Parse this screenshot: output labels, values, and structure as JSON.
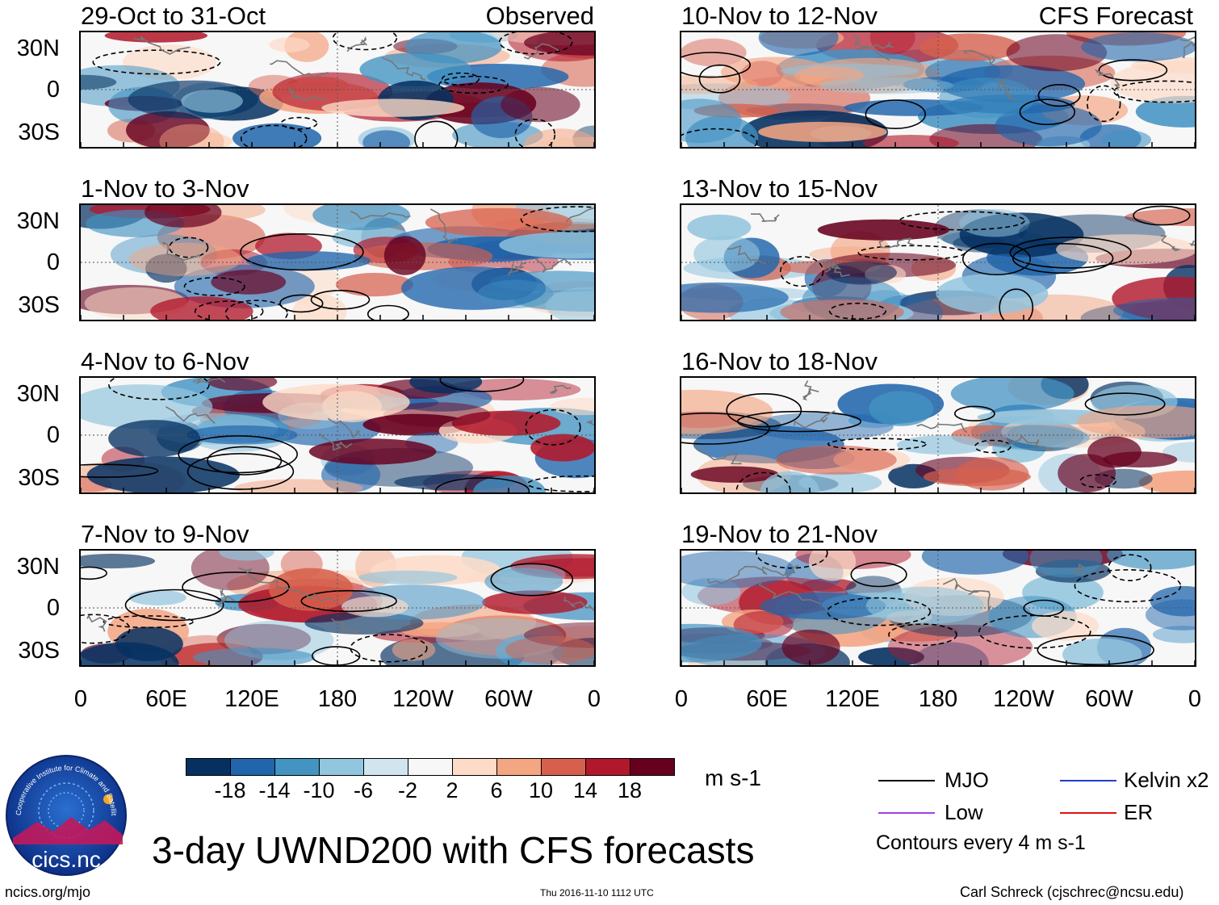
{
  "chart_data": {
    "type": "heatmap",
    "title": "3-day UWND200 with CFS forecasts",
    "variable": "UWND200",
    "units": "m s-1",
    "column_headers": {
      "left": "Observed",
      "right": "CFS Forecast"
    },
    "lat_ticks": [
      "30N",
      "0",
      "30S"
    ],
    "lon_ticks": [
      "0",
      "60E",
      "120E",
      "180",
      "120W",
      "60W",
      "0"
    ],
    "panels": [
      {
        "period": "29-Oct to 31-Oct",
        "column": "left",
        "row": 0,
        "source": "Observed"
      },
      {
        "period": "1-Nov to 3-Nov",
        "column": "left",
        "row": 1,
        "source": "Observed"
      },
      {
        "period": "4-Nov to 6-Nov",
        "column": "left",
        "row": 2,
        "source": "Observed"
      },
      {
        "period": "7-Nov to 9-Nov",
        "column": "left",
        "row": 3,
        "source": "Observed"
      },
      {
        "period": "10-Nov to 12-Nov",
        "column": "right",
        "row": 0,
        "source": "CFS Forecast"
      },
      {
        "period": "13-Nov to 15-Nov",
        "column": "right",
        "row": 1,
        "source": "CFS Forecast"
      },
      {
        "period": "16-Nov to 18-Nov",
        "column": "right",
        "row": 2,
        "source": "CFS Forecast"
      },
      {
        "period": "19-Nov to 21-Nov",
        "column": "right",
        "row": 3,
        "source": "CFS Forecast"
      }
    ],
    "colorbar": {
      "ticks": [
        "-18",
        "-14",
        "-10",
        "-6",
        "-2",
        "2",
        "6",
        "10",
        "14",
        "18"
      ],
      "colors": [
        "#053061",
        "#2166ac",
        "#4393c3",
        "#92c5de",
        "#d1e5f0",
        "#f7f7f7",
        "#fddbc7",
        "#f4a582",
        "#d6604d",
        "#b2182b",
        "#67001f"
      ]
    },
    "legend": [
      {
        "label": "MJO",
        "color": "#000000"
      },
      {
        "label": "Kelvin x2",
        "color": "#1f3fd1"
      },
      {
        "label": "Low",
        "color": "#a040e0"
      },
      {
        "label": "ER",
        "color": "#e01010"
      }
    ],
    "contour_note": "Contours every 4 m s-1"
  },
  "footer": {
    "left": "ncics.org/mjo",
    "center": "Thu 2016-11-10 1112 UTC",
    "right": "Carl Schreck (cjschrec@ncsu.edu)"
  },
  "logo": {
    "text": "cics.nc",
    "ring_text": "Cooperative Institute for Climate and Satellites"
  }
}
